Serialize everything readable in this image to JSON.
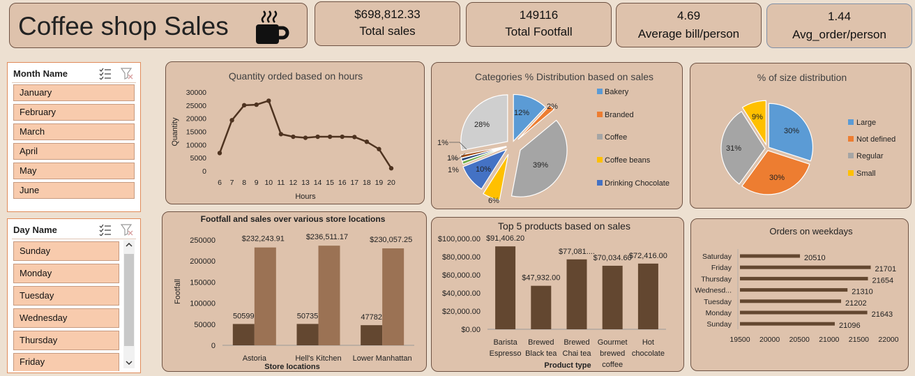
{
  "header": {
    "title": "Coffee shop Sales",
    "icon": "coffee-cup-icon"
  },
  "kpis": [
    {
      "value": "$698,812.33",
      "label": "Total sales"
    },
    {
      "value": "149116",
      "label": "Total Footfall"
    },
    {
      "value": "4.69",
      "label": "Average bill/person"
    },
    {
      "value": "1.44",
      "label": "Avg_order/person"
    }
  ],
  "month_slicer": {
    "title": "Month Name",
    "items": [
      "January",
      "February",
      "March",
      "April",
      "May",
      "June"
    ]
  },
  "day_slicer": {
    "title": "Day Name",
    "items": [
      "Sunday",
      "Monday",
      "Tuesday",
      "Wednesday",
      "Thursday",
      "Friday"
    ]
  },
  "colors": {
    "accent": "#5c3b1e",
    "bar_dark": "#634730",
    "bar_light": "#9b7254",
    "card": "#dec2ac",
    "background": "#ede0d1"
  },
  "chart_data": [
    {
      "type": "line",
      "title": "Quantity orded based on hours",
      "xlabel": "Hours",
      "ylabel": "Quantity",
      "x": [
        6,
        7,
        8,
        9,
        10,
        11,
        12,
        13,
        14,
        15,
        16,
        17,
        18,
        19,
        20
      ],
      "values": [
        6800,
        19300,
        25000,
        25200,
        26700,
        14000,
        13000,
        12600,
        13000,
        13000,
        13000,
        12900,
        11100,
        8300,
        1000
      ],
      "ylim": [
        0,
        30000
      ],
      "yticks": [
        "0",
        "5000",
        "10000",
        "15000",
        "20000",
        "25000",
        "30000"
      ]
    },
    {
      "type": "pie",
      "title": "Categories % Distribution based on sales",
      "legend_position": "right",
      "legend": [
        "Bakery",
        "Branded",
        "Coffee",
        "Coffee beans",
        "Drinking Chocolate"
      ],
      "slices": [
        {
          "name": "Bakery",
          "value": 12,
          "label": "12%",
          "color": "#5b9bd5"
        },
        {
          "name": "Branded",
          "value": 2,
          "label": "2%",
          "color": "#ed7d31"
        },
        {
          "name": "Coffee",
          "value": 39,
          "label": "39%",
          "color": "#a5a5a5"
        },
        {
          "name": "Coffee beans",
          "value": 6,
          "label": "6%",
          "color": "#ffc000"
        },
        {
          "name": "Drinking Chocolate",
          "value": 10,
          "label": "10%",
          "color": "#4472c4"
        },
        {
          "name": "",
          "value": 1,
          "label": "1%",
          "color": "#70ad47"
        },
        {
          "name": "",
          "value": 1,
          "label": "1%",
          "color": "#264478"
        },
        {
          "name": "",
          "value": 1,
          "label": "1%",
          "color": "#9e480e"
        },
        {
          "name": "",
          "value": 28,
          "label": "28%",
          "color": "#cfcfcf"
        }
      ]
    },
    {
      "type": "pie",
      "title": "% of size distribution",
      "legend_position": "right",
      "legend": [
        "Large",
        "Not defined",
        "Regular",
        "Small"
      ],
      "slices": [
        {
          "name": "Large",
          "value": 30,
          "label": "30%",
          "color": "#5b9bd5"
        },
        {
          "name": "Not defined",
          "value": 30,
          "label": "30%",
          "color": "#ed7d31"
        },
        {
          "name": "Regular",
          "value": 31,
          "label": "31%",
          "color": "#a5a5a5"
        },
        {
          "name": "Small",
          "value": 9,
          "label": "9%",
          "color": "#ffc000"
        }
      ]
    },
    {
      "type": "bar",
      "title": "Footfall and sales over various store locations",
      "xlabel": "Store locations",
      "ylabel": "Footfall",
      "categories": [
        "Astoria",
        "Hell's Kitchen",
        "Lower Manhattan"
      ],
      "series": [
        {
          "values": [
            50599,
            50735,
            47782
          ],
          "labels": [
            "50599",
            "50735",
            "47782"
          ]
        },
        {
          "values": [
            232243.91,
            236511.17,
            230057.25
          ],
          "labels": [
            "$232,243.91",
            "$236,511.17",
            "$230,057.25"
          ]
        }
      ],
      "ylim": [
        0,
        250000
      ],
      "yticks": [
        "0",
        "50000",
        "100000",
        "150000",
        "200000",
        "250000"
      ]
    },
    {
      "type": "bar",
      "title": "Top 5 products based on sales",
      "xlabel": "Product type",
      "categories": [
        "Barista Espresso",
        "Brewed Black tea",
        "Brewed Chai tea",
        "Gourmet brewed coffee",
        "Hot chocolate"
      ],
      "category_lines": [
        [
          "Barista",
          "Espresso"
        ],
        [
          "Brewed",
          "Black tea"
        ],
        [
          "Brewed",
          "Chai tea"
        ],
        [
          "Gourmet",
          "brewed",
          "coffee"
        ],
        [
          "Hot",
          "chocolate"
        ]
      ],
      "values": [
        91406.2,
        47932.0,
        77081.0,
        70034.6,
        72416.0
      ],
      "labels": [
        "$91,406.20",
        "$47,932.00",
        "$77,081....",
        "$70,034.60",
        "$72,416.00"
      ],
      "ylim": [
        0,
        100000
      ],
      "yticks": [
        "$0.00",
        "$20,000.00",
        "$40,000.00",
        "$60,000.00",
        "$80,000.00",
        "$100,000.00"
      ]
    },
    {
      "type": "bar",
      "orientation": "horizontal",
      "title": "Orders on weekdays",
      "categories": [
        "Saturday",
        "Friday",
        "Thursday",
        "Wednesd...",
        "Tuesday",
        "Monday",
        "Sunday"
      ],
      "values": [
        20510,
        21701,
        21654,
        21310,
        21202,
        21643,
        21096
      ],
      "labels": [
        "20510",
        "21701",
        "21654",
        "21310",
        "21202",
        "21643",
        "21096"
      ],
      "xlim": [
        19500,
        22000
      ],
      "xticks": [
        "19500",
        "20000",
        "20500",
        "21000",
        "21500",
        "22000"
      ]
    }
  ]
}
